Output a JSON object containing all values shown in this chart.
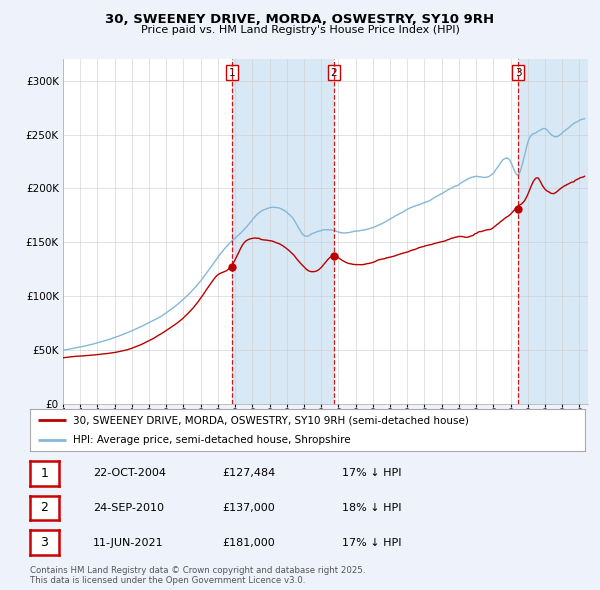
{
  "title": "30, SWEENEY DRIVE, MORDA, OSWESTRY, SY10 9RH",
  "subtitle": "Price paid vs. HM Land Registry's House Price Index (HPI)",
  "bg_color": "#eef2fb",
  "plot_bg_color": "#ffffff",
  "shade_color": "#d8e8f5",
  "red_line_color": "#bb0000",
  "blue_line_color": "#85b8d8",
  "grid_color": "#cccccc",
  "vline_color": "#cc0000",
  "marker_color": "#bb0000",
  "ylim": [
    0,
    320000
  ],
  "yticks": [
    0,
    50000,
    100000,
    150000,
    200000,
    250000,
    300000
  ],
  "ytick_labels": [
    "£0",
    "£50K",
    "£100K",
    "£150K",
    "£200K",
    "£250K",
    "£300K"
  ],
  "xstart_year": 1995,
  "xend_year": 2025,
  "sale_dates": [
    2004.81,
    2010.73,
    2021.44
  ],
  "sale_prices": [
    127484,
    137000,
    181000
  ],
  "sale_labels": [
    "1",
    "2",
    "3"
  ],
  "sale_date_strs": [
    "22-OCT-2004",
    "24-SEP-2010",
    "11-JUN-2021"
  ],
  "sale_price_strs": [
    "£127,484",
    "£137,000",
    "£181,000"
  ],
  "sale_hpi_strs": [
    "17% ↓ HPI",
    "18% ↓ HPI",
    "17% ↓ HPI"
  ],
  "legend_red": "30, SWEENEY DRIVE, MORDA, OSWESTRY, SY10 9RH (semi-detached house)",
  "legend_blue": "HPI: Average price, semi-detached house, Shropshire",
  "footnote": "Contains HM Land Registry data © Crown copyright and database right 2025.\nThis data is licensed under the Open Government Licence v3.0."
}
